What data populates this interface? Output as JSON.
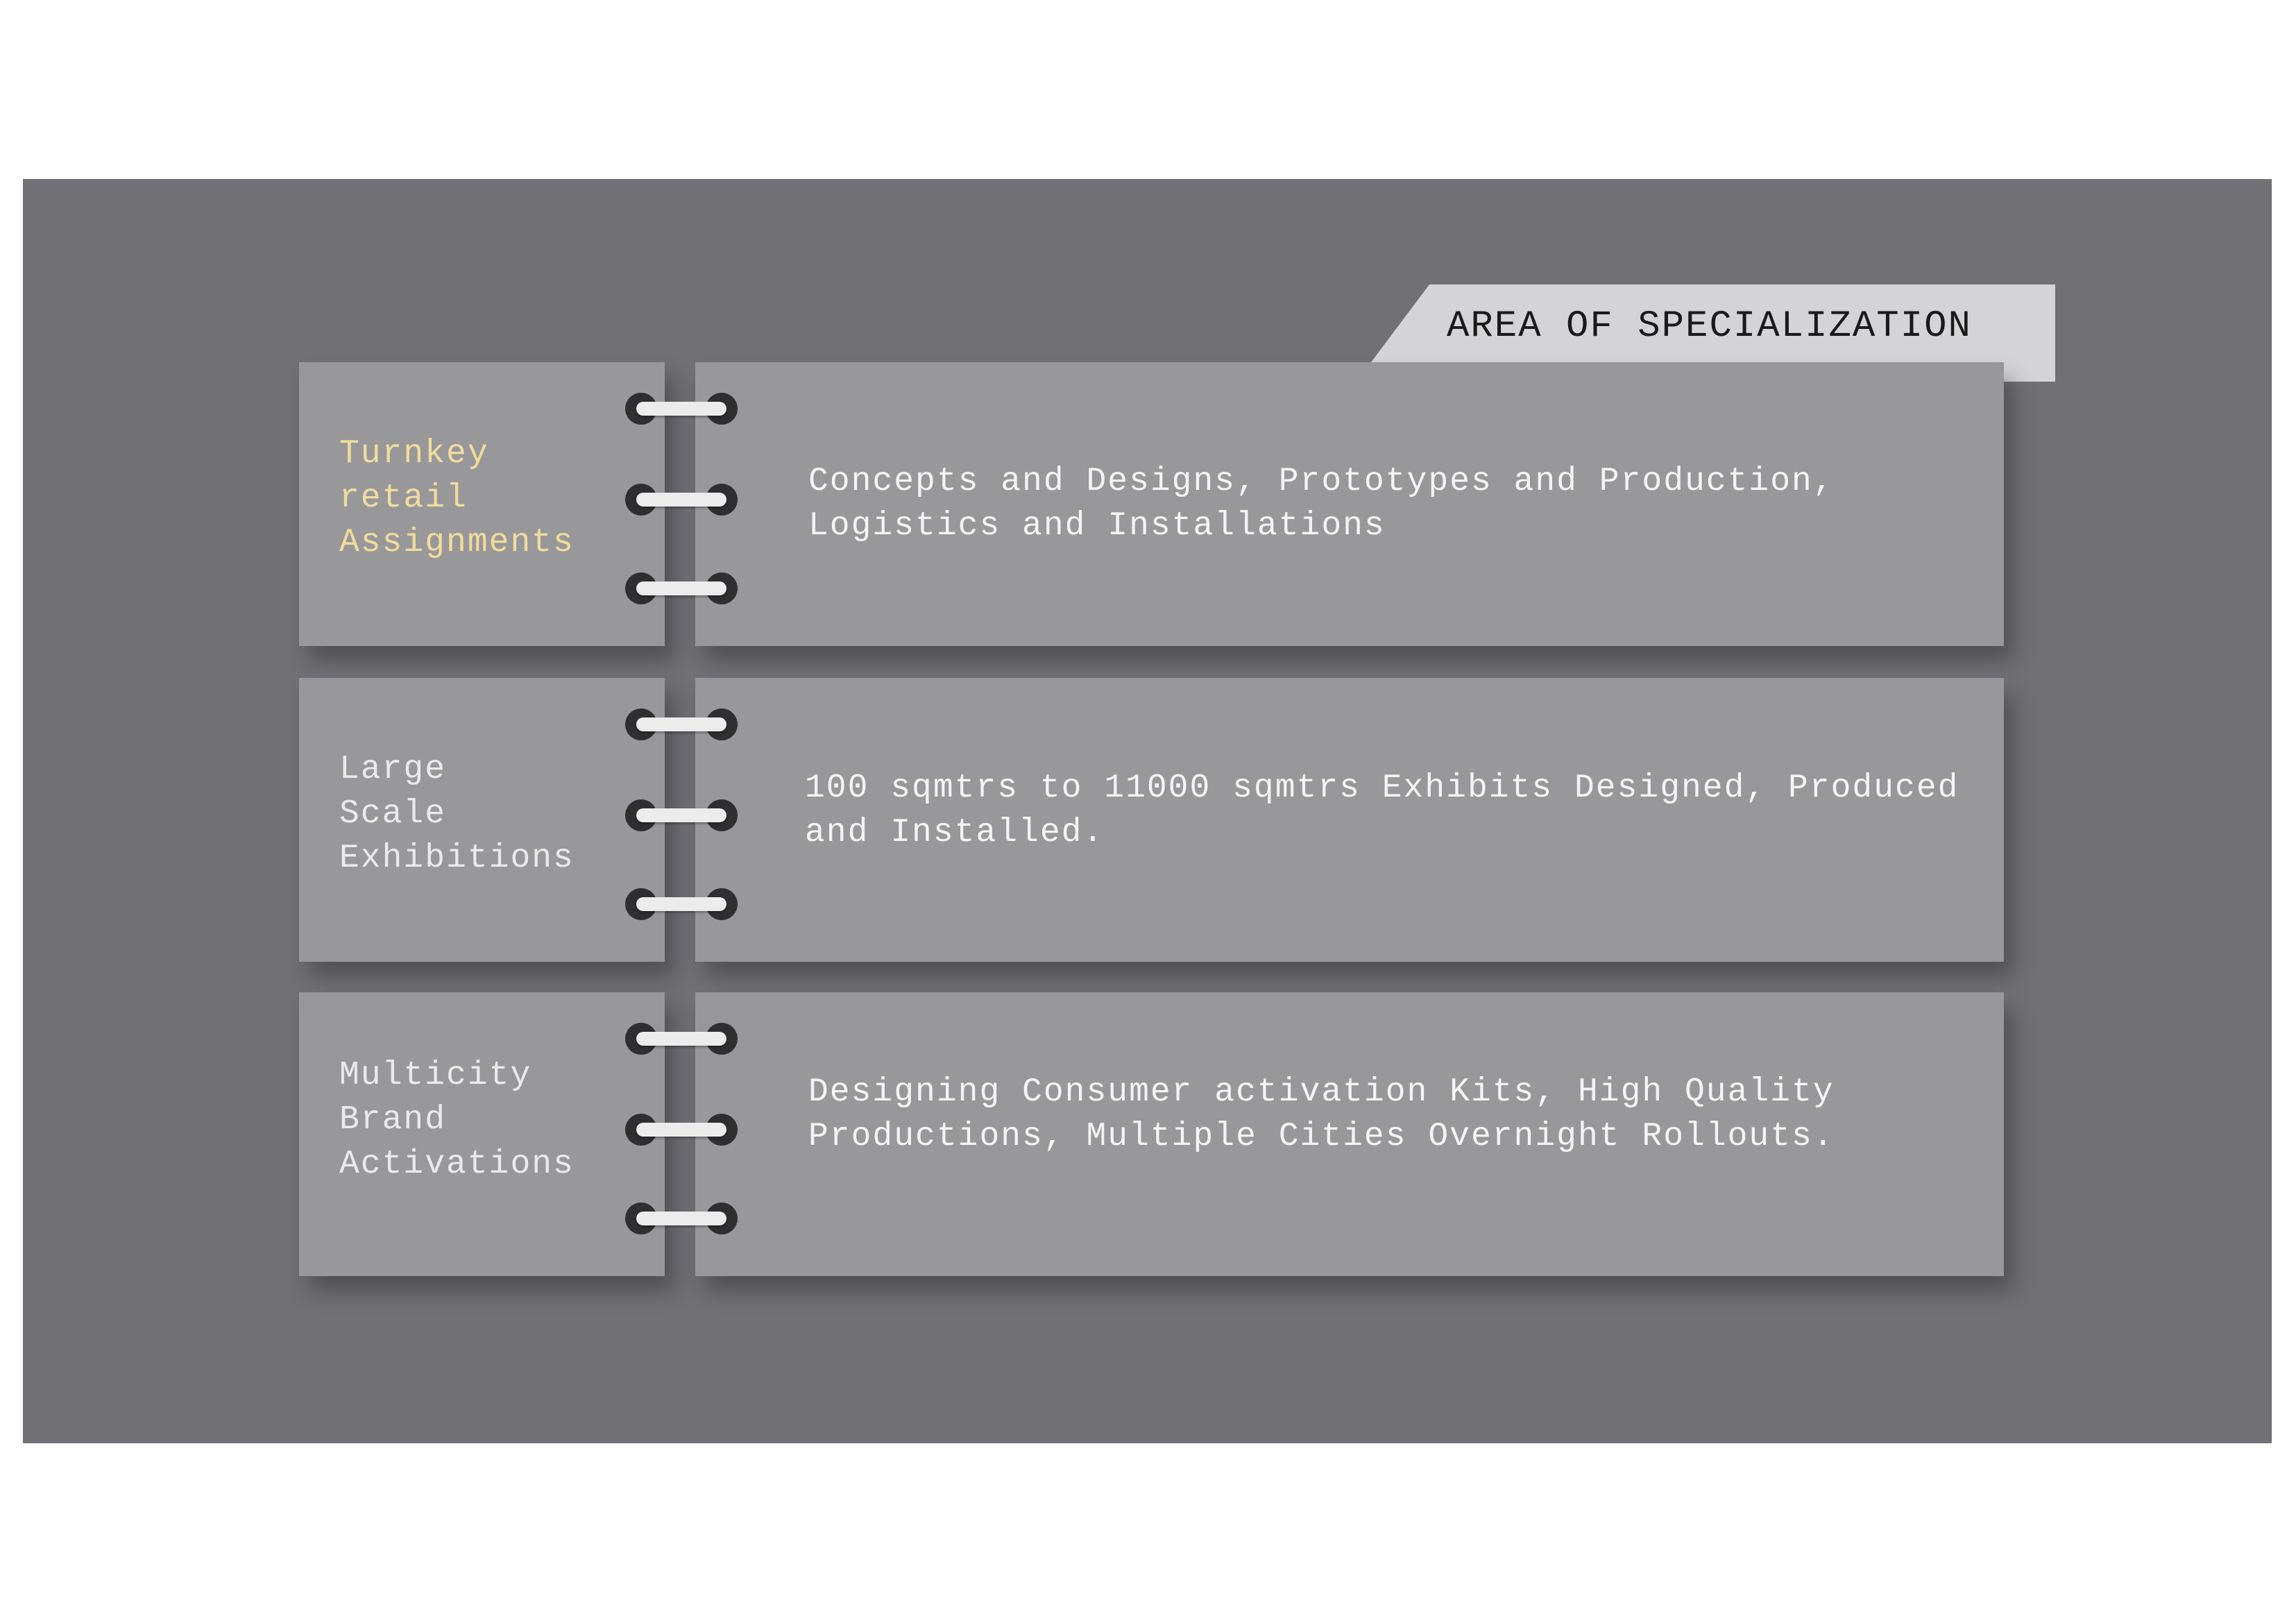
{
  "heading": "AREA OF SPECIALIZATION",
  "items": [
    {
      "label": "Turnkey\nretail\nAssignments",
      "description": "Concepts and Designs, Prototypes and Production, Logistics and Installations",
      "highlighted": true
    },
    {
      "label": "Large\nScale\nExhibitions",
      "description": "100 sqmtrs to 11000 sqmtrs Exhibits Designed, Produced and Installed.",
      "highlighted": false
    },
    {
      "label": "Multicity\nBrand\nActivations",
      "description": "Designing Consumer activation Kits, High Quality Productions, Multiple Cities Overnight Rollouts.",
      "highlighted": false
    }
  ],
  "colors": {
    "slide_background": "#717075",
    "card": "#98989b",
    "heading_tab": "#d4d4d6",
    "highlight_text": "#f0dc9c",
    "ring_dark": "#2f2f31"
  }
}
